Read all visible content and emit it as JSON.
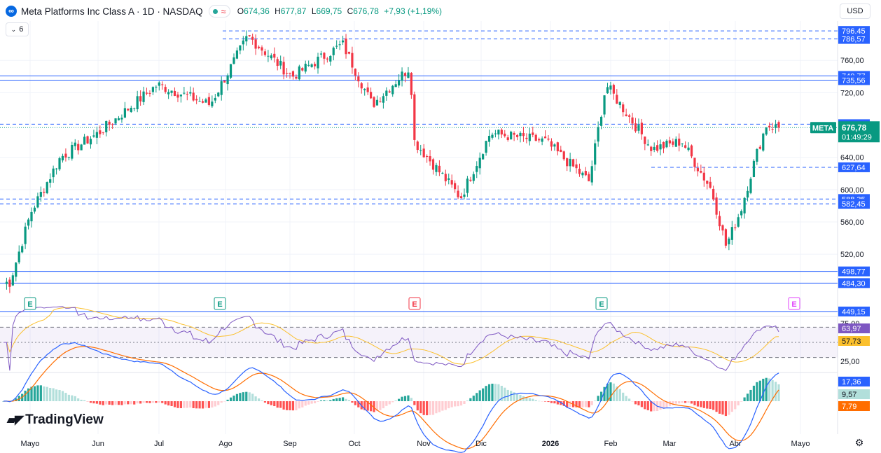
{
  "header": {
    "title": "Meta Platforms Inc Class A · 1D · NASDAQ",
    "wavy_symbol": "≈",
    "ohlc": [
      {
        "label": "O",
        "value": "674,36"
      },
      {
        "label": "H",
        "value": "677,87"
      },
      {
        "label": "L",
        "value": "669,75"
      },
      {
        "label": "C",
        "value": "676,78"
      }
    ],
    "change": "+7,93 (+1,19%)",
    "collapse_label": "6",
    "currency": "USD"
  },
  "branding": {
    "name": "TradingView"
  },
  "colors": {
    "up": "#089981",
    "down": "#f23645",
    "level_line": "#2962ff",
    "rsi": "#7e57c2",
    "rsi_ma": "#fbc02d",
    "macd": "#2962ff",
    "signal": "#ff6d00"
  },
  "chart_data": [
    {
      "type": "candlestick",
      "symbol": "META",
      "x_ticks": [
        "Mayo",
        "Jun",
        "Jul",
        "Ago",
        "Sep",
        "Oct",
        "Nov",
        "Dic",
        "2026",
        "Feb",
        "Mar",
        "Abr",
        "Mayo"
      ],
      "y_ticks": [
        "760,00",
        "720,00",
        "640,00",
        "600,00",
        "560,00",
        "520,00"
      ],
      "last_price": {
        "label": "META",
        "value": "676,78",
        "countdown": "01:49:29"
      },
      "solid_levels": [
        "740,77",
        "735,56",
        "498,77",
        "484,30",
        "449,15"
      ],
      "dashed_levels": [
        "796,45",
        "786,57",
        "681,00",
        "627,64",
        "588,35",
        "582,45"
      ],
      "earnings_markers": [
        "E",
        "E",
        "E",
        "E",
        "E"
      ],
      "approx_close_path": [
        {
          "date": "2025-04-21",
          "close": 485
        },
        {
          "date": "2025-05-01",
          "close": 572
        },
        {
          "date": "2025-05-15",
          "close": 640
        },
        {
          "date": "2025-06-02",
          "close": 670
        },
        {
          "date": "2025-06-30",
          "close": 730
        },
        {
          "date": "2025-07-25",
          "close": 705
        },
        {
          "date": "2025-08-12",
          "close": 790
        },
        {
          "date": "2025-09-02",
          "close": 740
        },
        {
          "date": "2025-09-26",
          "close": 780
        },
        {
          "date": "2025-10-10",
          "close": 705
        },
        {
          "date": "2025-10-28",
          "close": 752
        },
        {
          "date": "2025-10-30",
          "close": 660
        },
        {
          "date": "2025-11-21",
          "close": 590
        },
        {
          "date": "2025-12-05",
          "close": 670
        },
        {
          "date": "2025-12-31",
          "close": 660
        },
        {
          "date": "2026-01-21",
          "close": 610
        },
        {
          "date": "2026-01-29",
          "close": 730
        },
        {
          "date": "2026-02-20",
          "close": 650
        },
        {
          "date": "2026-03-06",
          "close": 660
        },
        {
          "date": "2026-03-20",
          "close": 600
        },
        {
          "date": "2026-03-27",
          "close": 530
        },
        {
          "date": "2026-04-03",
          "close": 575
        },
        {
          "date": "2026-04-10",
          "close": 640
        },
        {
          "date": "2026-04-15",
          "close": 680
        },
        {
          "date": "2026-04-21",
          "close": 676.78
        }
      ]
    },
    {
      "type": "line",
      "name": "RSI",
      "y_ticks": [
        "75,00",
        "25,00"
      ],
      "current": {
        "rsi": "63,97",
        "ma": "57,73"
      },
      "bands": [
        70,
        50,
        30
      ]
    },
    {
      "type": "histogram",
      "name": "MACD",
      "current": {
        "macd": "17,36",
        "histogram": "9,57",
        "signal": "7,79"
      }
    }
  ]
}
